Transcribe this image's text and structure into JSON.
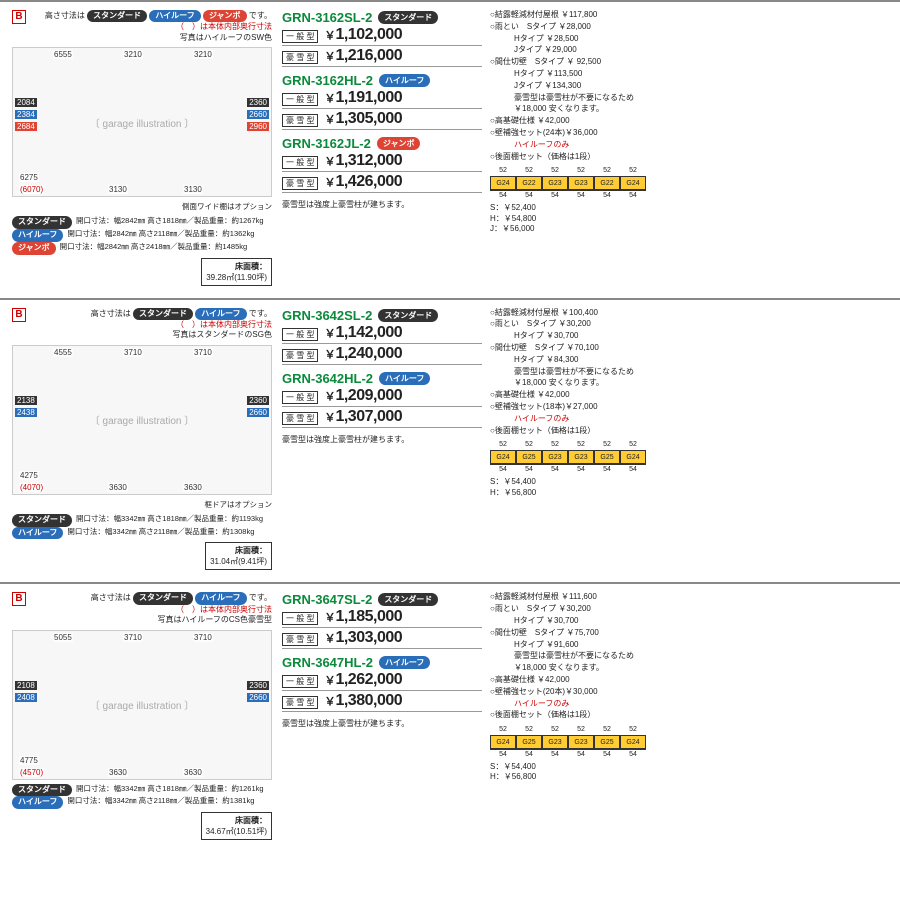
{
  "badges": {
    "std": "スタンダード",
    "hl": "ハイルーフ",
    "jb": "ジャンボ"
  },
  "labels": {
    "ippan": "一 般 型",
    "gosetsu": "豪 雪 型",
    "floor": "床面積：",
    "snow_note": "豪雪型は強度上豪雪柱が建ちます。"
  },
  "products": [
    {
      "header_notes": [
        "高さ寸法は スタンダード ハイルーフ ジャンボ です。",
        "（　）は本体内部奥行寸法",
        "写真はハイルーフのSW色"
      ],
      "show_jumbo": true,
      "dims": {
        "top_left": "6555",
        "top_mid": "3210",
        "top_right": "3210",
        "left_h1": "2084",
        "left_h2": "2384",
        "left_h3": "2684",
        "bottom_depth": "6275",
        "bottom_depth_red": "(6070)",
        "bottom_w1": "3130",
        "bottom_w2": "3130",
        "right_h1": "2360",
        "right_h2": "2660",
        "right_h3": "2960"
      },
      "diagram_caption": "側面ワイド棚はオプション",
      "specs": [
        {
          "badge": "std",
          "text": "開口寸法：幅2842㎜ 高さ1818㎜／製品重量：約1267kg"
        },
        {
          "badge": "hl",
          "text": "開口寸法：幅2842㎜ 高さ2118㎜／製品重量：約1362kg"
        },
        {
          "badge": "jb",
          "text": "開口寸法：幅2842㎜ 高さ2418㎜／製品重量：約1485kg"
        }
      ],
      "floor_area": "39.28㎡(11.90坪)",
      "models": [
        {
          "name": "GRN-3162SL-2",
          "badge": "std",
          "p1": "1,102,000",
          "p2": "1,216,000"
        },
        {
          "name": "GRN-3162HL-2",
          "badge": "hl",
          "p1": "1,191,000",
          "p2": "1,305,000"
        },
        {
          "name": "GRN-3162JL-2",
          "badge": "jb",
          "p1": "1,312,000",
          "p2": "1,426,000"
        }
      ],
      "options": [
        {
          "t": "○結露軽減材付屋根 ￥117,800"
        },
        {
          "t": "○雨とい　Sタイプ ￥28,000"
        },
        {
          "t": "Hタイプ ￥28,500",
          "indent": true
        },
        {
          "t": "Jタイプ ￥29,000",
          "indent": true
        },
        {
          "t": "○間仕切壁　Sタイプ ￥ 92,500"
        },
        {
          "t": "Hタイプ ￥113,500",
          "indent": true
        },
        {
          "t": "Jタイプ ￥134,300",
          "indent": true
        },
        {
          "t": "豪雪型は豪雪柱が不要になるため",
          "indent": true
        },
        {
          "t": "￥18,000 安くなります。",
          "indent": true
        },
        {
          "t": "○高基礎仕様 ￥42,000"
        },
        {
          "t": "○壁補強セット(24本)￥36,000"
        },
        {
          "t": "ハイルーフのみ",
          "red": true,
          "indent": true
        },
        {
          "t": "○後面棚セット（価格は1段）"
        }
      ],
      "panels": {
        "top": [
          "52",
          "52",
          "52",
          "52",
          "52",
          "52"
        ],
        "cells": [
          "G24",
          "G22",
          "G23",
          "G23",
          "G22",
          "G24"
        ],
        "bot": [
          "54",
          "54",
          "54",
          "54",
          "54",
          "54"
        ],
        "prices": [
          "S：￥52,400",
          "H：￥54,800",
          "J：￥56,000"
        ]
      }
    },
    {
      "header_notes": [
        "高さ寸法は スタンダード ハイルーフ です。",
        "（　）は本体内部奥行寸法",
        "写真はスタンダードのSG色"
      ],
      "show_jumbo": false,
      "dims": {
        "top_left": "4555",
        "top_mid": "3710",
        "top_right": "3710",
        "left_h1": "2138",
        "left_h2": "2438",
        "left_h3": "",
        "bottom_depth": "4275",
        "bottom_depth_red": "(4070)",
        "bottom_w1": "3630",
        "bottom_w2": "3630",
        "right_h1": "2360",
        "right_h2": "2660",
        "right_h3": ""
      },
      "diagram_caption": "框ドアはオプション",
      "specs": [
        {
          "badge": "std",
          "text": "開口寸法：幅3342㎜ 高さ1818㎜／製品重量：約1193kg"
        },
        {
          "badge": "hl",
          "text": "開口寸法：幅3342㎜ 高さ2118㎜／製品重量：約1308kg"
        }
      ],
      "floor_area": "31.04㎡(9.41坪)",
      "models": [
        {
          "name": "GRN-3642SL-2",
          "badge": "std",
          "p1": "1,142,000",
          "p2": "1,240,000"
        },
        {
          "name": "GRN-3642HL-2",
          "badge": "hl",
          "p1": "1,209,000",
          "p2": "1,307,000"
        }
      ],
      "options": [
        {
          "t": "○結露軽減材付屋根 ￥100,400"
        },
        {
          "t": "○雨とい　Sタイプ ￥30,200"
        },
        {
          "t": "Hタイプ ￥30,700",
          "indent": true
        },
        {
          "t": "○間仕切壁　Sタイプ ￥70,100"
        },
        {
          "t": "Hタイプ ￥84,300",
          "indent": true
        },
        {
          "t": "豪雪型は豪雪柱が不要になるため",
          "indent": true
        },
        {
          "t": "￥18,000 安くなります。",
          "indent": true
        },
        {
          "t": "○高基礎仕様 ￥42,000"
        },
        {
          "t": "○壁補強セット(18本)￥27,000"
        },
        {
          "t": "ハイルーフのみ",
          "red": true,
          "indent": true
        },
        {
          "t": "○後面棚セット（価格は1段）"
        }
      ],
      "panels": {
        "top": [
          "52",
          "52",
          "52",
          "52",
          "52",
          "52"
        ],
        "cells": [
          "G24",
          "G25",
          "G23",
          "G23",
          "G25",
          "G24"
        ],
        "bot": [
          "54",
          "54",
          "54",
          "54",
          "54",
          "54"
        ],
        "prices": [
          "S：￥54,400",
          "H：￥56,800"
        ]
      }
    },
    {
      "header_notes": [
        "高さ寸法は スタンダード ハイルーフ です。",
        "（　）は本体内部奥行寸法",
        "写真はハイルーフのCS色豪雪型"
      ],
      "show_jumbo": false,
      "dims": {
        "top_left": "5055",
        "top_mid": "3710",
        "top_right": "3710",
        "left_h1": "2108",
        "left_h2": "2408",
        "left_h3": "",
        "bottom_depth": "4775",
        "bottom_depth_red": "(4570)",
        "bottom_w1": "3630",
        "bottom_w2": "3630",
        "right_h1": "2360",
        "right_h2": "2660",
        "right_h3": ""
      },
      "diagram_caption": "",
      "specs": [
        {
          "badge": "std",
          "text": "開口寸法：幅3342㎜ 高さ1818㎜／製品重量：約1261kg"
        },
        {
          "badge": "hl",
          "text": "開口寸法：幅3342㎜ 高さ2118㎜／製品重量：約1381kg"
        }
      ],
      "floor_area": "34.67㎡(10.51坪)",
      "models": [
        {
          "name": "GRN-3647SL-2",
          "badge": "std",
          "p1": "1,185,000",
          "p2": "1,303,000"
        },
        {
          "name": "GRN-3647HL-2",
          "badge": "hl",
          "p1": "1,262,000",
          "p2": "1,380,000"
        }
      ],
      "options": [
        {
          "t": "○結露軽減材付屋根 ￥111,600"
        },
        {
          "t": "○雨とい　Sタイプ ￥30,200"
        },
        {
          "t": "Hタイプ ￥30,700",
          "indent": true
        },
        {
          "t": "○間仕切壁　Sタイプ ￥75,700"
        },
        {
          "t": "Hタイプ ￥91,600",
          "indent": true
        },
        {
          "t": "豪雪型は豪雪柱が不要になるため",
          "indent": true
        },
        {
          "t": "￥18,000 安くなります。",
          "indent": true
        },
        {
          "t": "○高基礎仕様 ￥42,000"
        },
        {
          "t": "○壁補強セット(20本)￥30,000"
        },
        {
          "t": "ハイルーフのみ",
          "red": true,
          "indent": true
        },
        {
          "t": "○後面棚セット（価格は1段）"
        }
      ],
      "panels": {
        "top": [
          "52",
          "52",
          "52",
          "52",
          "52",
          "52"
        ],
        "cells": [
          "G24",
          "G25",
          "G23",
          "G23",
          "G25",
          "G24"
        ],
        "bot": [
          "54",
          "54",
          "54",
          "54",
          "54",
          "54"
        ],
        "prices": [
          "S：￥54,400",
          "H：￥56,800"
        ]
      }
    }
  ]
}
